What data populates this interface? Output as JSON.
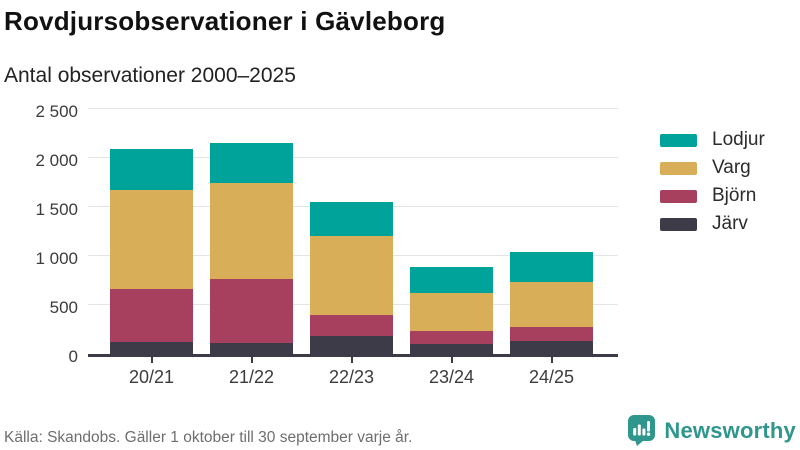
{
  "title": "Rovdjursobservationer i Gävleborg",
  "subtitle": "Antal observationer 2000–2025",
  "source": "Källa: Skandobs. Gäller 1 oktober till 30 september varje år.",
  "brand": {
    "name": "Newsworthy",
    "color": "#2f968d"
  },
  "chart_data": {
    "type": "bar",
    "stacked": true,
    "title": "Rovdjursobservationer i Gävleborg",
    "subtitle": "Antal observationer 2000–2025",
    "categories": [
      "20/21",
      "21/22",
      "22/23",
      "23/24",
      "24/25"
    ],
    "series": [
      {
        "name": "Järv",
        "color": "#3e3b49",
        "values": [
          120,
          110,
          180,
          100,
          130
        ]
      },
      {
        "name": "Björn",
        "color": "#a73f5f",
        "values": [
          545,
          655,
          220,
          130,
          150
        ]
      },
      {
        "name": "Varg",
        "color": "#d9ae58",
        "values": [
          1005,
          985,
          800,
          390,
          460
        ]
      },
      {
        "name": "Lodjur",
        "color": "#00a39a",
        "values": [
          420,
          400,
          350,
          270,
          300
        ]
      }
    ],
    "totals": [
      2090,
      2150,
      1550,
      890,
      1040
    ],
    "stack_order_bottom_to_top": [
      "Järv",
      "Björn",
      "Varg",
      "Lodjur"
    ],
    "legend_order": [
      "Lodjur",
      "Varg",
      "Björn",
      "Järv"
    ],
    "legend_position": "right",
    "grid": true,
    "ylim": [
      0,
      2500
    ],
    "yticks": [
      {
        "value": 0,
        "label": "0"
      },
      {
        "value": 500,
        "label": "500"
      },
      {
        "value": 1000,
        "label": "1 000"
      },
      {
        "value": 1500,
        "label": "1 500"
      },
      {
        "value": 2000,
        "label": "2 000"
      },
      {
        "value": 2500,
        "label": "2 500"
      }
    ]
  }
}
